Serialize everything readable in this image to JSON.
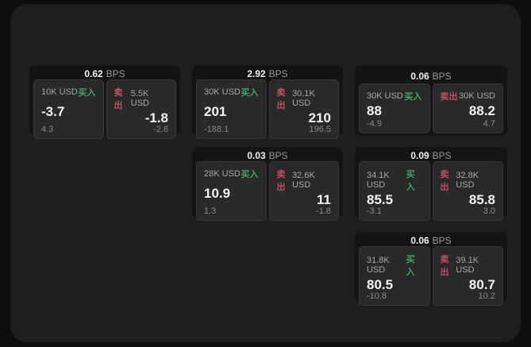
{
  "colors": {
    "page_bg": "#0e0e10",
    "panel_bg": "#1e1e20",
    "card_bg": "#141416",
    "subpanel_bg": "#29292c",
    "buy_green": "#43a35f",
    "sell_red": "#c04f5f",
    "value_white": "#f4f4f5",
    "label_gray": "#a6a6aa"
  },
  "cards": [
    {
      "bps_value": "0.62",
      "bps_unit": "BPS",
      "buy": {
        "size": "10K USD",
        "side": "买入",
        "value": "-3.7",
        "delta": "4.3"
      },
      "sell": {
        "side": "卖出",
        "size": "5.5K USD",
        "value": "-1.8",
        "delta": "-2.6"
      }
    },
    {
      "bps_value": "2.92",
      "bps_unit": "BPS",
      "buy": {
        "size": "30K USD",
        "side": "买入",
        "value": "201",
        "delta": "-188.1"
      },
      "sell": {
        "side": "卖出",
        "size": "30.1K USD",
        "value": "210",
        "delta": "196.5"
      }
    },
    {
      "bps_value": "0.06",
      "bps_unit": "BPS",
      "buy": {
        "size": "30K USD",
        "side": "买入",
        "value": "88",
        "delta": "-4.9"
      },
      "sell": {
        "side": "卖出",
        "size": "30K USD",
        "value": "88.2",
        "delta": "4.7"
      }
    },
    {
      "bps_value": "0.03",
      "bps_unit": "BPS",
      "buy": {
        "size": "28K USD",
        "side": "买入",
        "value": "10.9",
        "delta": "1.3"
      },
      "sell": {
        "side": "卖出",
        "size": "32.6K USD",
        "value": "11",
        "delta": "-1.8"
      }
    },
    {
      "bps_value": "0.09",
      "bps_unit": "BPS",
      "buy": {
        "size": "34.1K USD",
        "side": "买入",
        "value": "85.5",
        "delta": "-3.1"
      },
      "sell": {
        "side": "卖出",
        "size": "32.8K USD",
        "value": "85.8",
        "delta": "3.0"
      }
    },
    {
      "bps_value": "0.06",
      "bps_unit": "BPS",
      "buy": {
        "size": "31.8K USD",
        "side": "买入",
        "value": "80.5",
        "delta": "-10.8"
      },
      "sell": {
        "side": "卖出",
        "size": "39.1K USD",
        "value": "80.7",
        "delta": "10.2"
      }
    }
  ]
}
